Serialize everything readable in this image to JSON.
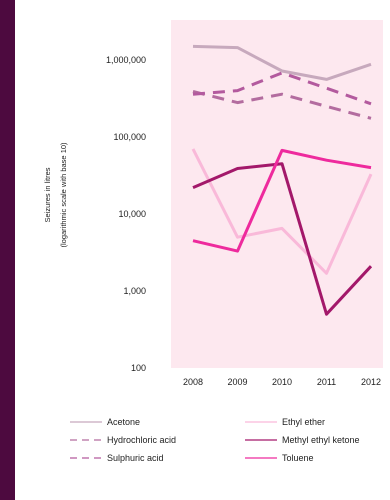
{
  "colors": {
    "frame": "#4d0a3f",
    "plot_background": "#fde8ef",
    "acetone": "#c7a9bd",
    "ethyl_ether": "#f9b9d9",
    "hydrochloric_acid": "#b36c9f",
    "methyl_ethyl_ketone": "#a3186a",
    "sulphuric_acid": "#b35a9e",
    "toluene": "#ee2a9d"
  },
  "chart_data": {
    "type": "line",
    "y_scale": "log10",
    "ylabel": "Seizures in litres",
    "ylabel_sub": "(logarithmic scale with base 10)",
    "ylim": [
      100,
      2000000
    ],
    "yticks": [
      100,
      1000,
      10000,
      100000,
      1000000
    ],
    "ytick_labels": [
      "100",
      "1,000",
      "10,000",
      "100,000",
      "1,000,000"
    ],
    "x": [
      "2008",
      "2009",
      "2010",
      "2011",
      "2012"
    ],
    "grid": false,
    "legend_position": "bottom",
    "series": [
      {
        "name": "Acetone",
        "color_key": "acetone",
        "dash": "solid",
        "values": [
          1500000,
          1450000,
          720000,
          560000,
          880000
        ]
      },
      {
        "name": "Ethyl ether",
        "color_key": "ethyl_ether",
        "dash": "solid",
        "values": [
          70000,
          5000,
          6500,
          1700,
          33000
        ]
      },
      {
        "name": "Hydrochloric acid",
        "color_key": "hydrochloric_acid",
        "dash": "dashed",
        "values": [
          390000,
          280000,
          360000,
          250000,
          175000
        ]
      },
      {
        "name": "Methyl ethyl ketone",
        "color_key": "methyl_ethyl_ketone",
        "dash": "solid",
        "values": [
          22000,
          39000,
          45000,
          500,
          2100
        ]
      },
      {
        "name": "Sulphuric acid",
        "color_key": "sulphuric_acid",
        "dash": "dashed",
        "values": [
          360000,
          400000,
          680000,
          430000,
          270000
        ]
      },
      {
        "name": "Toluene",
        "color_key": "toluene",
        "dash": "solid",
        "values": [
          4500,
          3300,
          67000,
          50000,
          40000
        ]
      }
    ]
  }
}
